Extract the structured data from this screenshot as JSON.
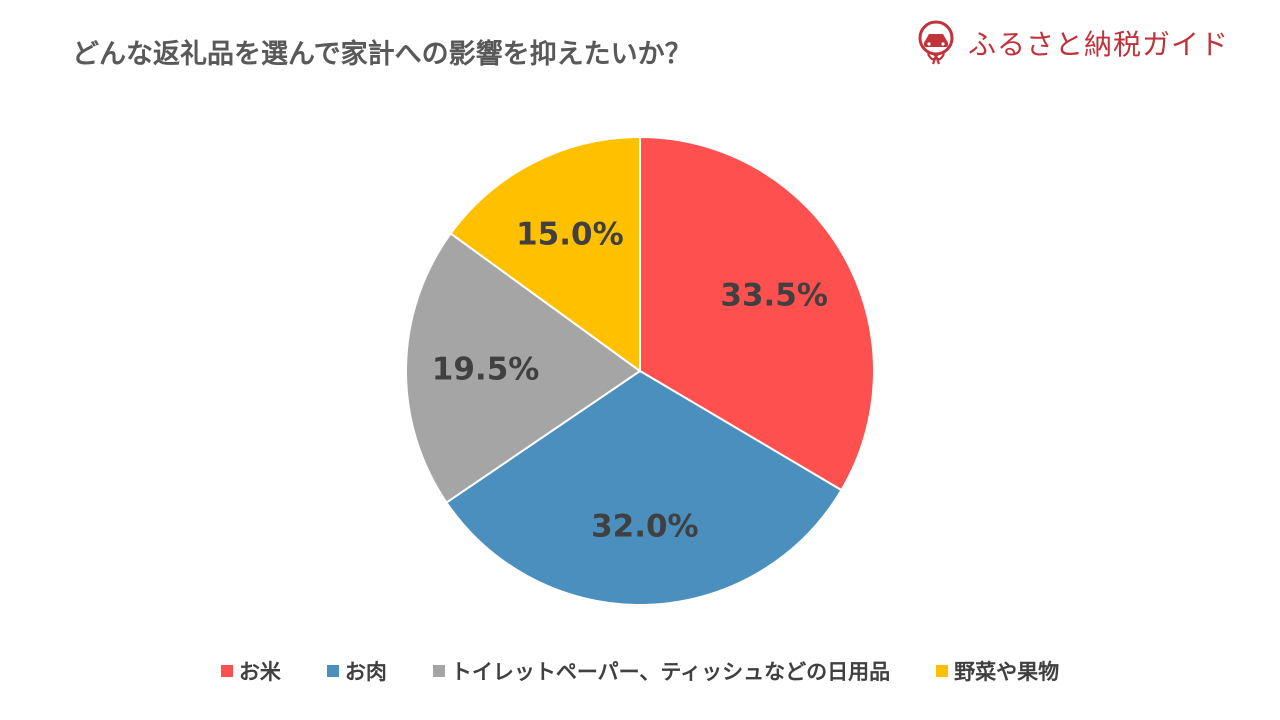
{
  "header": {
    "title": "どんな返礼品を選んで家計への影響を抑えたいか？"
  },
  "brand": {
    "name": "ふるさと納税ガイド",
    "logo_icon": "furusato-logo-icon",
    "color": "#c0333b"
  },
  "chart_data": {
    "type": "pie",
    "categories": [
      "お米",
      "お肉",
      "トイレットペーパー、ティッシュなどの日用品",
      "野菜や果物"
    ],
    "values": [
      33.5,
      32.0,
      19.5,
      15.0
    ],
    "labels": [
      "33.5%",
      "32.0%",
      "19.5%",
      "15.0%"
    ],
    "colors": [
      "#ff5050",
      "#4a8fbd",
      "#a5a5a5",
      "#ffc000"
    ],
    "start_angle": "12 o'clock",
    "direction": "clockwise",
    "legend_position": "bottom"
  }
}
